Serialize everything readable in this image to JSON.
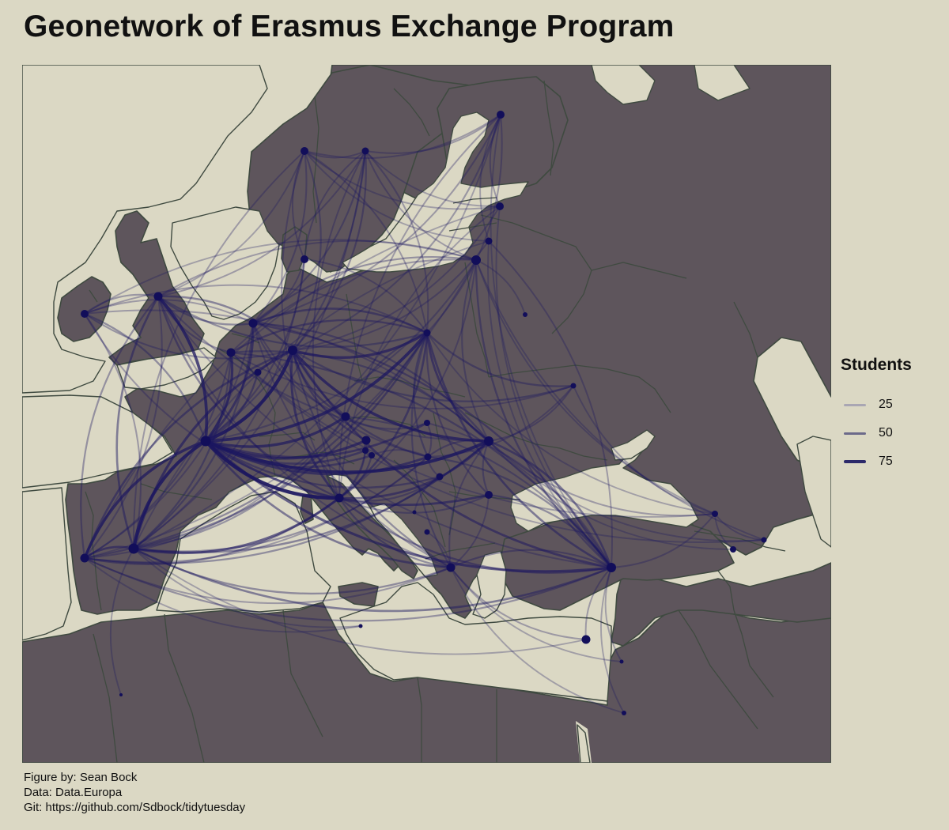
{
  "title": "Geonetwork of Erasmus Exchange Program",
  "legend": {
    "title": "Students",
    "items": [
      {
        "label": "25",
        "color": "#a9a6b3"
      },
      {
        "label": "50",
        "color": "#6c6a8a"
      },
      {
        "label": "75",
        "color": "#2c2a6a"
      }
    ]
  },
  "caption": {
    "figure_by": "Figure by: Sean Bock",
    "data": "Data: Data.Europa",
    "git": "Git: https://github.com/Sdbock/tidytuesday"
  },
  "colors": {
    "background": "#dbd8c4",
    "land": "#5e555c",
    "border": "#3f4a40",
    "edge": "#1b1660",
    "node": "#120e5a"
  },
  "map": {
    "type": "flow-map",
    "region": "Europe",
    "nodes": [
      {
        "id": "FI"
      },
      {
        "id": "NO"
      },
      {
        "id": "SE"
      },
      {
        "id": "EE"
      },
      {
        "id": "LV"
      },
      {
        "id": "DK"
      },
      {
        "id": "LT"
      },
      {
        "id": "IE"
      },
      {
        "id": "UK"
      },
      {
        "id": "NL"
      },
      {
        "id": "BE"
      },
      {
        "id": "DE"
      },
      {
        "id": "PL"
      },
      {
        "id": "LU"
      },
      {
        "id": "FR"
      },
      {
        "id": "CZ"
      },
      {
        "id": "SK"
      },
      {
        "id": "UA"
      },
      {
        "id": "AT"
      },
      {
        "id": "HU"
      },
      {
        "id": "RO"
      },
      {
        "id": "SI"
      },
      {
        "id": "HR"
      },
      {
        "id": "RS"
      },
      {
        "id": "BG"
      },
      {
        "id": "IT"
      },
      {
        "id": "MK"
      },
      {
        "id": "ME"
      },
      {
        "id": "GR"
      },
      {
        "id": "TR"
      },
      {
        "id": "ES"
      },
      {
        "id": "PT"
      },
      {
        "id": "CY"
      },
      {
        "id": "GE"
      },
      {
        "id": "AM"
      },
      {
        "id": "AZ"
      },
      {
        "id": "MT"
      },
      {
        "id": "LB"
      },
      {
        "id": "IL"
      },
      {
        "id": "DZ"
      },
      {
        "id": "BY"
      }
    ],
    "flows": [
      {
        "from": "FR",
        "to": "IT",
        "students": 90
      },
      {
        "from": "FR",
        "to": "DE",
        "students": 85
      },
      {
        "from": "FR",
        "to": "ES",
        "students": 80
      },
      {
        "from": "FR",
        "to": "RO",
        "students": 78
      },
      {
        "from": "FR",
        "to": "PL",
        "students": 72
      },
      {
        "from": "FR",
        "to": "UK",
        "students": 70
      },
      {
        "from": "FR",
        "to": "PT",
        "students": 65
      },
      {
        "from": "FR",
        "to": "CZ",
        "students": 62
      },
      {
        "from": "FR",
        "to": "AT",
        "students": 60
      },
      {
        "from": "FR",
        "to": "BE",
        "students": 58
      },
      {
        "from": "FR",
        "to": "TR",
        "students": 55
      },
      {
        "from": "FR",
        "to": "HU",
        "students": 52
      },
      {
        "from": "FR",
        "to": "NL",
        "students": 50
      },
      {
        "from": "FR",
        "to": "BG",
        "students": 48
      },
      {
        "from": "FR",
        "to": "SK",
        "students": 45
      },
      {
        "from": "FR",
        "to": "GR",
        "students": 42
      },
      {
        "from": "FR",
        "to": "SI",
        "students": 40
      },
      {
        "from": "FR",
        "to": "HR",
        "students": 38
      },
      {
        "from": "FR",
        "to": "LU",
        "students": 36
      },
      {
        "from": "FR",
        "to": "RS",
        "students": 34
      },
      {
        "from": "FR",
        "to": "IE",
        "students": 30
      },
      {
        "from": "FR",
        "to": "DK",
        "students": 28
      },
      {
        "from": "FR",
        "to": "SE",
        "students": 26
      },
      {
        "from": "FR",
        "to": "LT",
        "students": 25
      },
      {
        "from": "DE",
        "to": "RO",
        "students": 65
      },
      {
        "from": "DE",
        "to": "PL",
        "students": 60
      },
      {
        "from": "DE",
        "to": "ES",
        "students": 55
      },
      {
        "from": "DE",
        "to": "IT",
        "students": 50
      },
      {
        "from": "DE",
        "to": "TR",
        "students": 45
      },
      {
        "from": "DE",
        "to": "PT",
        "students": 40
      },
      {
        "from": "DE",
        "to": "CZ",
        "students": 38
      },
      {
        "from": "DE",
        "to": "UA",
        "students": 30
      },
      {
        "from": "DE",
        "to": "SE",
        "students": 28
      },
      {
        "from": "DE",
        "to": "NO",
        "students": 26
      },
      {
        "from": "DE",
        "to": "FI",
        "students": 25
      },
      {
        "from": "DE",
        "to": "HU",
        "students": 32
      },
      {
        "from": "DE",
        "to": "GR",
        "students": 30
      },
      {
        "from": "DE",
        "to": "AT",
        "students": 35
      },
      {
        "from": "DE",
        "to": "UK",
        "students": 36
      },
      {
        "from": "DE",
        "to": "LV",
        "students": 24
      },
      {
        "from": "DE",
        "to": "EE",
        "students": 22
      },
      {
        "from": "UK",
        "to": "ES",
        "students": 40
      },
      {
        "from": "UK",
        "to": "IT",
        "students": 35
      },
      {
        "from": "UK",
        "to": "PL",
        "students": 30
      },
      {
        "from": "UK",
        "to": "IE",
        "students": 25
      },
      {
        "from": "UK",
        "to": "PT",
        "students": 28
      },
      {
        "from": "UK",
        "to": "NL",
        "students": 30
      },
      {
        "from": "UK",
        "to": "BE",
        "students": 28
      },
      {
        "from": "UK",
        "to": "RO",
        "students": 25
      },
      {
        "from": "UK",
        "to": "SE",
        "students": 22
      },
      {
        "from": "UK",
        "to": "NO",
        "students": 20
      },
      {
        "from": "ES",
        "to": "IT",
        "students": 55
      },
      {
        "from": "ES",
        "to": "PT",
        "students": 45
      },
      {
        "from": "ES",
        "to": "TR",
        "students": 40
      },
      {
        "from": "ES",
        "to": "PL",
        "students": 38
      },
      {
        "from": "ES",
        "to": "RO",
        "students": 36
      },
      {
        "from": "ES",
        "to": "GR",
        "students": 32
      },
      {
        "from": "ES",
        "to": "NL",
        "students": 30
      },
      {
        "from": "ES",
        "to": "BE",
        "students": 30
      },
      {
        "from": "ES",
        "to": "HU",
        "students": 28
      },
      {
        "from": "ES",
        "to": "CZ",
        "students": 26
      },
      {
        "from": "ES",
        "to": "IE",
        "students": 24
      },
      {
        "from": "ES",
        "to": "SE",
        "students": 22
      },
      {
        "from": "ES",
        "to": "DK",
        "students": 22
      },
      {
        "from": "ES",
        "to": "FI",
        "students": 20
      },
      {
        "from": "ES",
        "to": "CY",
        "students": 20
      },
      {
        "from": "PT",
        "to": "IT",
        "students": 35
      },
      {
        "from": "PT",
        "to": "PL",
        "students": 32
      },
      {
        "from": "PT",
        "to": "RO",
        "students": 30
      },
      {
        "from": "PT",
        "to": "TR",
        "students": 28
      },
      {
        "from": "PT",
        "to": "BE",
        "students": 26
      },
      {
        "from": "PT",
        "to": "NL",
        "students": 24
      },
      {
        "from": "PT",
        "to": "GR",
        "students": 24
      },
      {
        "from": "PT",
        "to": "CZ",
        "students": 22
      },
      {
        "from": "PT",
        "to": "HU",
        "students": 22
      },
      {
        "from": "PT",
        "to": "LT",
        "students": 20
      },
      {
        "from": "PT",
        "to": "UK",
        "students": 24
      },
      {
        "from": "IT",
        "to": "RO",
        "students": 45
      },
      {
        "from": "IT",
        "to": "PL",
        "students": 40
      },
      {
        "from": "IT",
        "to": "TR",
        "students": 35
      },
      {
        "from": "IT",
        "to": "GR",
        "students": 30
      },
      {
        "from": "IT",
        "to": "HR",
        "students": 30
      },
      {
        "from": "IT",
        "to": "RS",
        "students": 28
      },
      {
        "from": "IT",
        "to": "BG",
        "students": 26
      },
      {
        "from": "IT",
        "to": "AT",
        "students": 28
      },
      {
        "from": "IT",
        "to": "SI",
        "students": 26
      },
      {
        "from": "IT",
        "to": "LT",
        "students": 22
      },
      {
        "from": "PL",
        "to": "RO",
        "students": 45
      },
      {
        "from": "PL",
        "to": "TR",
        "students": 42
      },
      {
        "from": "PL",
        "to": "NL",
        "students": 38
      },
      {
        "from": "PL",
        "to": "BE",
        "students": 35
      },
      {
        "from": "PL",
        "to": "UA",
        "students": 32
      },
      {
        "from": "PL",
        "to": "HU",
        "students": 30
      },
      {
        "from": "PL",
        "to": "CZ",
        "students": 30
      },
      {
        "from": "PL",
        "to": "BG",
        "students": 28
      },
      {
        "from": "PL",
        "to": "GR",
        "students": 26
      },
      {
        "from": "PL",
        "to": "SE",
        "students": 24
      },
      {
        "from": "PL",
        "to": "FI",
        "students": 24
      },
      {
        "from": "PL",
        "to": "NO",
        "students": 22
      },
      {
        "from": "PL",
        "to": "IE",
        "students": 22
      },
      {
        "from": "PL",
        "to": "DK",
        "students": 22
      },
      {
        "from": "PL",
        "to": "GE",
        "students": 20
      },
      {
        "from": "LT",
        "to": "TR",
        "students": 32
      },
      {
        "from": "LT",
        "to": "NL",
        "students": 28
      },
      {
        "from": "LT",
        "to": "RO",
        "students": 25
      },
      {
        "from": "LT",
        "to": "BE",
        "students": 24
      },
      {
        "from": "LT",
        "to": "UK",
        "students": 22
      },
      {
        "from": "LT",
        "to": "IE",
        "students": 20
      },
      {
        "from": "LT",
        "to": "GE",
        "students": 20
      },
      {
        "from": "LT",
        "to": "AZ",
        "students": 20
      },
      {
        "from": "TR",
        "to": "RO",
        "students": 40
      },
      {
        "from": "TR",
        "to": "NL",
        "students": 35
      },
      {
        "from": "TR",
        "to": "BE",
        "students": 32
      },
      {
        "from": "TR",
        "to": "HU",
        "students": 30
      },
      {
        "from": "TR",
        "to": "BG",
        "students": 30
      },
      {
        "from": "TR",
        "to": "GR",
        "students": 28
      },
      {
        "from": "TR",
        "to": "CZ",
        "students": 26
      },
      {
        "from": "TR",
        "to": "SK",
        "students": 24
      },
      {
        "from": "TR",
        "to": "LV",
        "students": 22
      },
      {
        "from": "TR",
        "to": "IL",
        "students": 20
      },
      {
        "from": "TR",
        "to": "LB",
        "students": 20
      },
      {
        "from": "TR",
        "to": "GE",
        "students": 22
      },
      {
        "from": "TR",
        "to": "CY",
        "students": 22
      },
      {
        "from": "RO",
        "to": "NL",
        "students": 32
      },
      {
        "from": "RO",
        "to": "BE",
        "students": 30
      },
      {
        "from": "RO",
        "to": "HU",
        "students": 28
      },
      {
        "from": "RO",
        "to": "BG",
        "students": 26
      },
      {
        "from": "RO",
        "to": "GR",
        "students": 24
      },
      {
        "from": "RO",
        "to": "UA",
        "students": 24
      },
      {
        "from": "RO",
        "to": "GE",
        "students": 22
      },
      {
        "from": "RO",
        "to": "AM",
        "students": 20
      },
      {
        "from": "RO",
        "to": "AZ",
        "students": 20
      },
      {
        "from": "RO",
        "to": "IE",
        "students": 22
      },
      {
        "from": "NL",
        "to": "SE",
        "students": 26
      },
      {
        "from": "NL",
        "to": "NO",
        "students": 24
      },
      {
        "from": "NL",
        "to": "FI",
        "students": 24
      },
      {
        "from": "NL",
        "to": "CZ",
        "students": 26
      },
      {
        "from": "NL",
        "to": "HU",
        "students": 24
      },
      {
        "from": "NL",
        "to": "GR",
        "students": 24
      },
      {
        "from": "NL",
        "to": "IE",
        "students": 22
      },
      {
        "from": "NL",
        "to": "DK",
        "students": 22
      },
      {
        "from": "BE",
        "to": "UA",
        "students": 22
      },
      {
        "from": "BE",
        "to": "GE",
        "students": 20
      },
      {
        "from": "BE",
        "to": "AZ",
        "students": 20
      },
      {
        "from": "NO",
        "to": "SE",
        "students": 22
      },
      {
        "from": "NO",
        "to": "DK",
        "students": 22
      },
      {
        "from": "NO",
        "to": "FI",
        "students": 22
      },
      {
        "from": "NO",
        "to": "EE",
        "students": 20
      },
      {
        "from": "NO",
        "to": "LV",
        "students": 20
      },
      {
        "from": "NO",
        "to": "IT",
        "students": 22
      },
      {
        "from": "NO",
        "to": "ES",
        "students": 22
      },
      {
        "from": "SE",
        "to": "FI",
        "students": 22
      },
      {
        "from": "SE",
        "to": "DK",
        "students": 22
      },
      {
        "from": "SE",
        "to": "EE",
        "students": 20
      },
      {
        "from": "SE",
        "to": "LT",
        "students": 22
      },
      {
        "from": "SE",
        "to": "IT",
        "students": 22
      },
      {
        "from": "FI",
        "to": "EE",
        "students": 22
      },
      {
        "from": "FI",
        "to": "LV",
        "students": 20
      },
      {
        "from": "FI",
        "to": "IT",
        "students": 22
      },
      {
        "from": "FI",
        "to": "TR",
        "students": 20
      },
      {
        "from": "EE",
        "to": "TR",
        "students": 20
      },
      {
        "from": "EE",
        "to": "IT",
        "students": 20
      },
      {
        "from": "EE",
        "to": "PT",
        "students": 20
      },
      {
        "from": "LV",
        "to": "TR",
        "students": 20
      },
      {
        "from": "LV",
        "to": "ES",
        "students": 20
      },
      {
        "from": "GR",
        "to": "CY",
        "students": 24
      },
      {
        "from": "GR",
        "to": "BG",
        "students": 22
      },
      {
        "from": "GR",
        "to": "IL",
        "students": 20
      },
      {
        "from": "GR",
        "to": "LB",
        "students": 20
      },
      {
        "from": "GR",
        "to": "MK",
        "students": 20
      },
      {
        "from": "HU",
        "to": "RS",
        "students": 24
      },
      {
        "from": "HU",
        "to": "SK",
        "students": 24
      },
      {
        "from": "HU",
        "to": "HR",
        "students": 22
      },
      {
        "from": "HU",
        "to": "UA",
        "students": 22
      },
      {
        "from": "CZ",
        "to": "SK",
        "students": 26
      },
      {
        "from": "AT",
        "to": "SI",
        "students": 22
      },
      {
        "from": "AT",
        "to": "HR",
        "students": 22
      },
      {
        "from": "SI",
        "to": "HR",
        "students": 20
      },
      {
        "from": "RS",
        "to": "ME",
        "students": 20
      },
      {
        "from": "IE",
        "to": "IT",
        "students": 24
      },
      {
        "from": "IE",
        "to": "DE",
        "students": 26
      },
      {
        "from": "UK",
        "to": "GR",
        "students": 22
      },
      {
        "from": "UK",
        "to": "TR",
        "students": 22
      },
      {
        "from": "ES",
        "to": "DZ",
        "students": 20
      },
      {
        "from": "PT",
        "to": "MT",
        "students": 20
      },
      {
        "from": "ES",
        "to": "MT",
        "students": 20
      },
      {
        "from": "GE",
        "to": "AM",
        "students": 20
      },
      {
        "from": "GE",
        "to": "AZ",
        "students": 20
      },
      {
        "from": "UA",
        "to": "GE",
        "students": 20
      },
      {
        "from": "BY",
        "to": "LT",
        "students": 20
      }
    ]
  }
}
